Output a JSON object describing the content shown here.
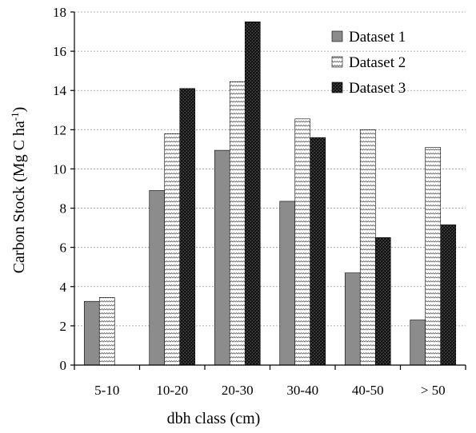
{
  "chart_data": {
    "type": "bar",
    "categories": [
      "5-10",
      "10-20",
      "20-30",
      "30-40",
      "40-50",
      "> 50"
    ],
    "series": [
      {
        "name": "Dataset 1",
        "values": [
          3.25,
          8.9,
          10.95,
          8.35,
          4.7,
          2.3
        ],
        "pattern": "solid-gray"
      },
      {
        "name": "Dataset 2",
        "values": [
          3.45,
          11.8,
          14.45,
          12.55,
          12.0,
          11.1
        ],
        "pattern": "zigzag"
      },
      {
        "name": "Dataset 3",
        "values": [
          0,
          14.1,
          17.5,
          11.6,
          6.5,
          7.15
        ],
        "pattern": "dark-dotted"
      }
    ],
    "xlabel": "dbh class (cm)",
    "ylabel": "Carbon Stock (Mg C ha",
    "ylabel_superscript": "-1",
    "ylabel_close": ")",
    "ylim": [
      0,
      18
    ],
    "yticks": [
      0,
      2,
      4,
      6,
      8,
      10,
      12,
      14,
      16,
      18
    ],
    "grid": true,
    "legend_position": "top-right"
  },
  "colors": {
    "dataset1_fill": "#8c8c8c",
    "dataset2_fill": "#ffffff",
    "dataset3_fill": "#1a1a1a"
  }
}
